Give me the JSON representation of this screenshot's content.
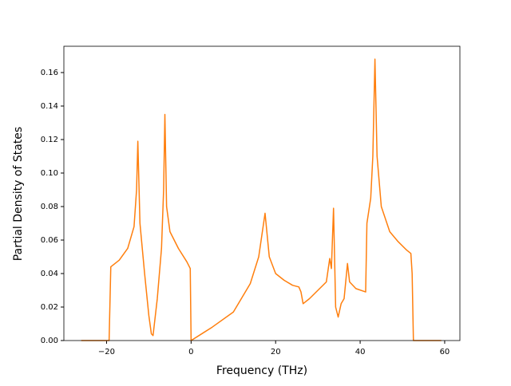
{
  "chart_data": {
    "type": "line",
    "xlabel": "Frequency (THz)",
    "ylabel": "Partial Density of States",
    "x": [
      -26,
      -19.4,
      -19.0,
      -17,
      -15,
      -13.5,
      -12.9,
      -12.6,
      -12.1,
      -11,
      -10,
      -9.4,
      -9.0,
      -8,
      -7,
      -6.5,
      -6.2,
      -5.8,
      -5,
      -3,
      -1,
      -0.2,
      0,
      5,
      10,
      14,
      16,
      17.5,
      18.5,
      20,
      22,
      24,
      25.5,
      26,
      26.5,
      28,
      30,
      32,
      32.8,
      33.2,
      33.7,
      34.2,
      34.8,
      35.5,
      36.2,
      37,
      37.5,
      39,
      41.3,
      41.6,
      42.5,
      43.0,
      43.5,
      44,
      45,
      47,
      49,
      51,
      52,
      52.3,
      52.6,
      59.2
    ],
    "values": [
      0,
      0,
      0.044,
      0.048,
      0.055,
      0.068,
      0.09,
      0.119,
      0.07,
      0.04,
      0.015,
      0.004,
      0.003,
      0.025,
      0.055,
      0.09,
      0.135,
      0.08,
      0.065,
      0.055,
      0.047,
      0.043,
      0,
      0.008,
      0.017,
      0.034,
      0.05,
      0.076,
      0.05,
      0.04,
      0.036,
      0.033,
      0.032,
      0.029,
      0.022,
      0.025,
      0.03,
      0.035,
      0.049,
      0.043,
      0.079,
      0.02,
      0.014,
      0.022,
      0.025,
      0.046,
      0.035,
      0.031,
      0.029,
      0.07,
      0.085,
      0.11,
      0.168,
      0.11,
      0.08,
      0.065,
      0.059,
      0.054,
      0.052,
      0.04,
      0,
      0
    ],
    "color": "#ff7f0e",
    "xlim": [
      -30.1,
      63.6
    ],
    "ylim": [
      0,
      0.1757
    ],
    "xticks": [
      {
        "value": -20,
        "label": "−20"
      },
      0,
      20,
      40,
      60
    ],
    "yticks": [
      {
        "value": 0,
        "label": "0.00"
      },
      {
        "value": 0.02,
        "label": "0.02"
      },
      {
        "value": 0.04,
        "label": "0.04"
      },
      {
        "value": 0.06,
        "label": "0.06"
      },
      {
        "value": 0.08,
        "label": "0.08"
      },
      {
        "value": 0.1,
        "label": "0.10"
      },
      {
        "value": 0.12,
        "label": "0.12"
      },
      {
        "value": 0.14,
        "label": "0.14"
      },
      {
        "value": 0.16,
        "label": "0.16"
      }
    ]
  }
}
